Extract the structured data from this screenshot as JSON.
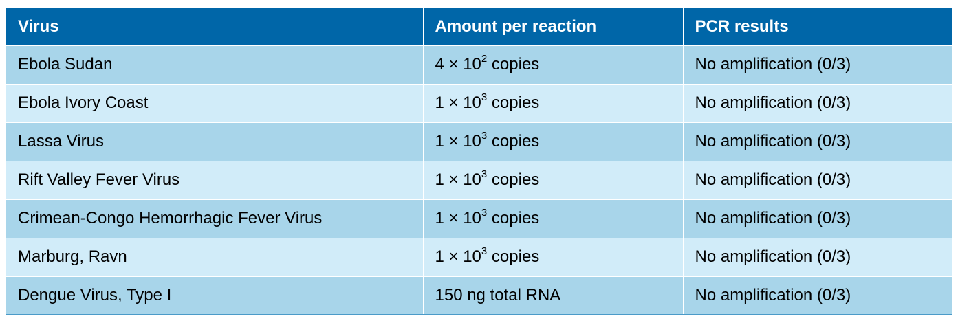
{
  "table": {
    "headers": [
      "Virus",
      "Amount per reaction",
      "PCR results"
    ],
    "rows": [
      {
        "virus": "Ebola Sudan",
        "amount": {
          "base": "4 × 10",
          "exp": "2",
          "unit": " copies"
        },
        "result": "No amplification  (0/3)"
      },
      {
        "virus": "Ebola Ivory Coast",
        "amount": {
          "base": "1 × 10",
          "exp": "3",
          "unit": " copies"
        },
        "result": "No amplification  (0/3)"
      },
      {
        "virus": "Lassa Virus",
        "amount": {
          "base": "1 × 10",
          "exp": "3",
          "unit": " copies"
        },
        "result": "No amplification  (0/3)"
      },
      {
        "virus": "Rift Valley Fever Virus",
        "amount": {
          "base": "1 × 10",
          "exp": "3",
          "unit": " copies"
        },
        "result": "No amplification  (0/3)"
      },
      {
        "virus": "Crimean-Congo Hemorrhagic Fever Virus",
        "amount": {
          "base": "1 × 10",
          "exp": "3",
          "unit": " copies"
        },
        "result": "No amplification  (0/3)"
      },
      {
        "virus": "Marburg, Ravn",
        "amount": {
          "base": "1 × 10",
          "exp": "3",
          "unit": " copies"
        },
        "result": "No amplification  (0/3)"
      },
      {
        "virus": "Dengue Virus, Type I",
        "amount": {
          "base": "150 ng total RNA",
          "exp": "",
          "unit": ""
        },
        "result": "No amplification  (0/3)"
      }
    ]
  },
  "colors": {
    "header_bg": "#0066a8",
    "row_odd_bg": "#a8d5ea",
    "row_even_bg": "#d1ecf9"
  }
}
